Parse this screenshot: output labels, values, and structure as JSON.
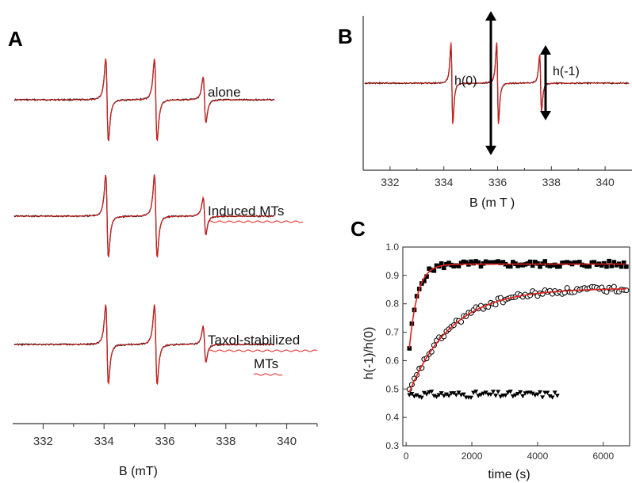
{
  "panels": {
    "A": {
      "letter": "A",
      "traces": [
        "alone",
        "Induced MTs",
        "Taxol-stabilized",
        "MTs"
      ],
      "xlabel": "B (mT)",
      "ticks": [
        "332",
        "334",
        "336",
        "338",
        "340"
      ]
    },
    "B": {
      "letter": "B",
      "annot_h0": "h(0)",
      "annot_hm1": "h(-1)",
      "xlabel": "B  (m T )",
      "ticks": [
        "332",
        "334",
        "336",
        "338",
        "340"
      ]
    },
    "C": {
      "letter": "C",
      "xlabel": "time (s)",
      "ylabel": "h(-1)/h(0)",
      "xticks": [
        "0",
        "2000",
        "4000",
        "6000"
      ],
      "yticks": [
        "0.3",
        "0.4",
        "0.5",
        "0.6",
        "0.7",
        "0.8",
        "0.9",
        "1.0"
      ]
    }
  },
  "colors": {
    "data_trace": "#000000",
    "fit_trace": "#e0201e",
    "axis": "#333333"
  },
  "chart_data": [
    {
      "type": "line",
      "title": "",
      "xlabel": "B (mT)",
      "ylabel": "",
      "xlim": [
        331,
        341
      ],
      "xticks": [
        332,
        334,
        336,
        338,
        340
      ],
      "series": [
        {
          "name": "alone",
          "line_centers_mT": [
            334.1,
            335.7,
            337.3
          ],
          "relative_peak_heights": [
            1.0,
            1.0,
            0.55
          ]
        },
        {
          "name": "Induced MTs",
          "line_centers_mT": [
            334.1,
            335.7,
            337.3
          ],
          "relative_peak_heights": [
            1.0,
            1.0,
            0.45
          ]
        },
        {
          "name": "Taxol-stabilized MTs",
          "line_centers_mT": [
            334.1,
            335.7,
            337.3
          ],
          "relative_peak_heights": [
            1.0,
            1.0,
            0.45
          ]
        }
      ],
      "grid": false
    },
    {
      "type": "line",
      "title": "",
      "xlabel": "B  (m T )",
      "ylabel": "",
      "xlim": [
        331,
        341
      ],
      "xticks": [
        332,
        334,
        336,
        338,
        340
      ],
      "line_centers_mT": [
        334.3,
        336.0,
        337.6
      ],
      "annotations": [
        "h(0)",
        "h(-1)"
      ],
      "grid": false
    },
    {
      "type": "scatter",
      "title": "",
      "xlabel": "time (s)",
      "ylabel": "h(-1)/h(0)",
      "xlim": [
        -100,
        6800
      ],
      "ylim": [
        0.3,
        1.0
      ],
      "xticks": [
        0,
        2000,
        4000,
        6000
      ],
      "yticks": [
        0.3,
        0.4,
        0.5,
        0.6,
        0.7,
        0.8,
        0.9,
        1.0
      ],
      "series": [
        {
          "marker": "filled-square",
          "model": "exponential",
          "y0": 0.5,
          "y_inf": 0.94,
          "tau_s": 250,
          "x_range": [
            100,
            6700
          ]
        },
        {
          "marker": "open-circle",
          "model": "exponential",
          "y0": 0.46,
          "y_inf": 0.855,
          "tau_s": 1300,
          "x_range": [
            100,
            6700
          ]
        },
        {
          "marker": "filled-triangle-down",
          "model": "constant",
          "y": 0.48,
          "x_range": [
            100,
            4600
          ]
        }
      ],
      "fits": [
        {
          "color": "#e0201e",
          "y0": 0.5,
          "y_inf": 0.94,
          "tau_s": 250
        },
        {
          "color": "#e0201e",
          "y0": 0.46,
          "y_inf": 0.855,
          "tau_s": 1300
        }
      ],
      "grid": false
    }
  ]
}
